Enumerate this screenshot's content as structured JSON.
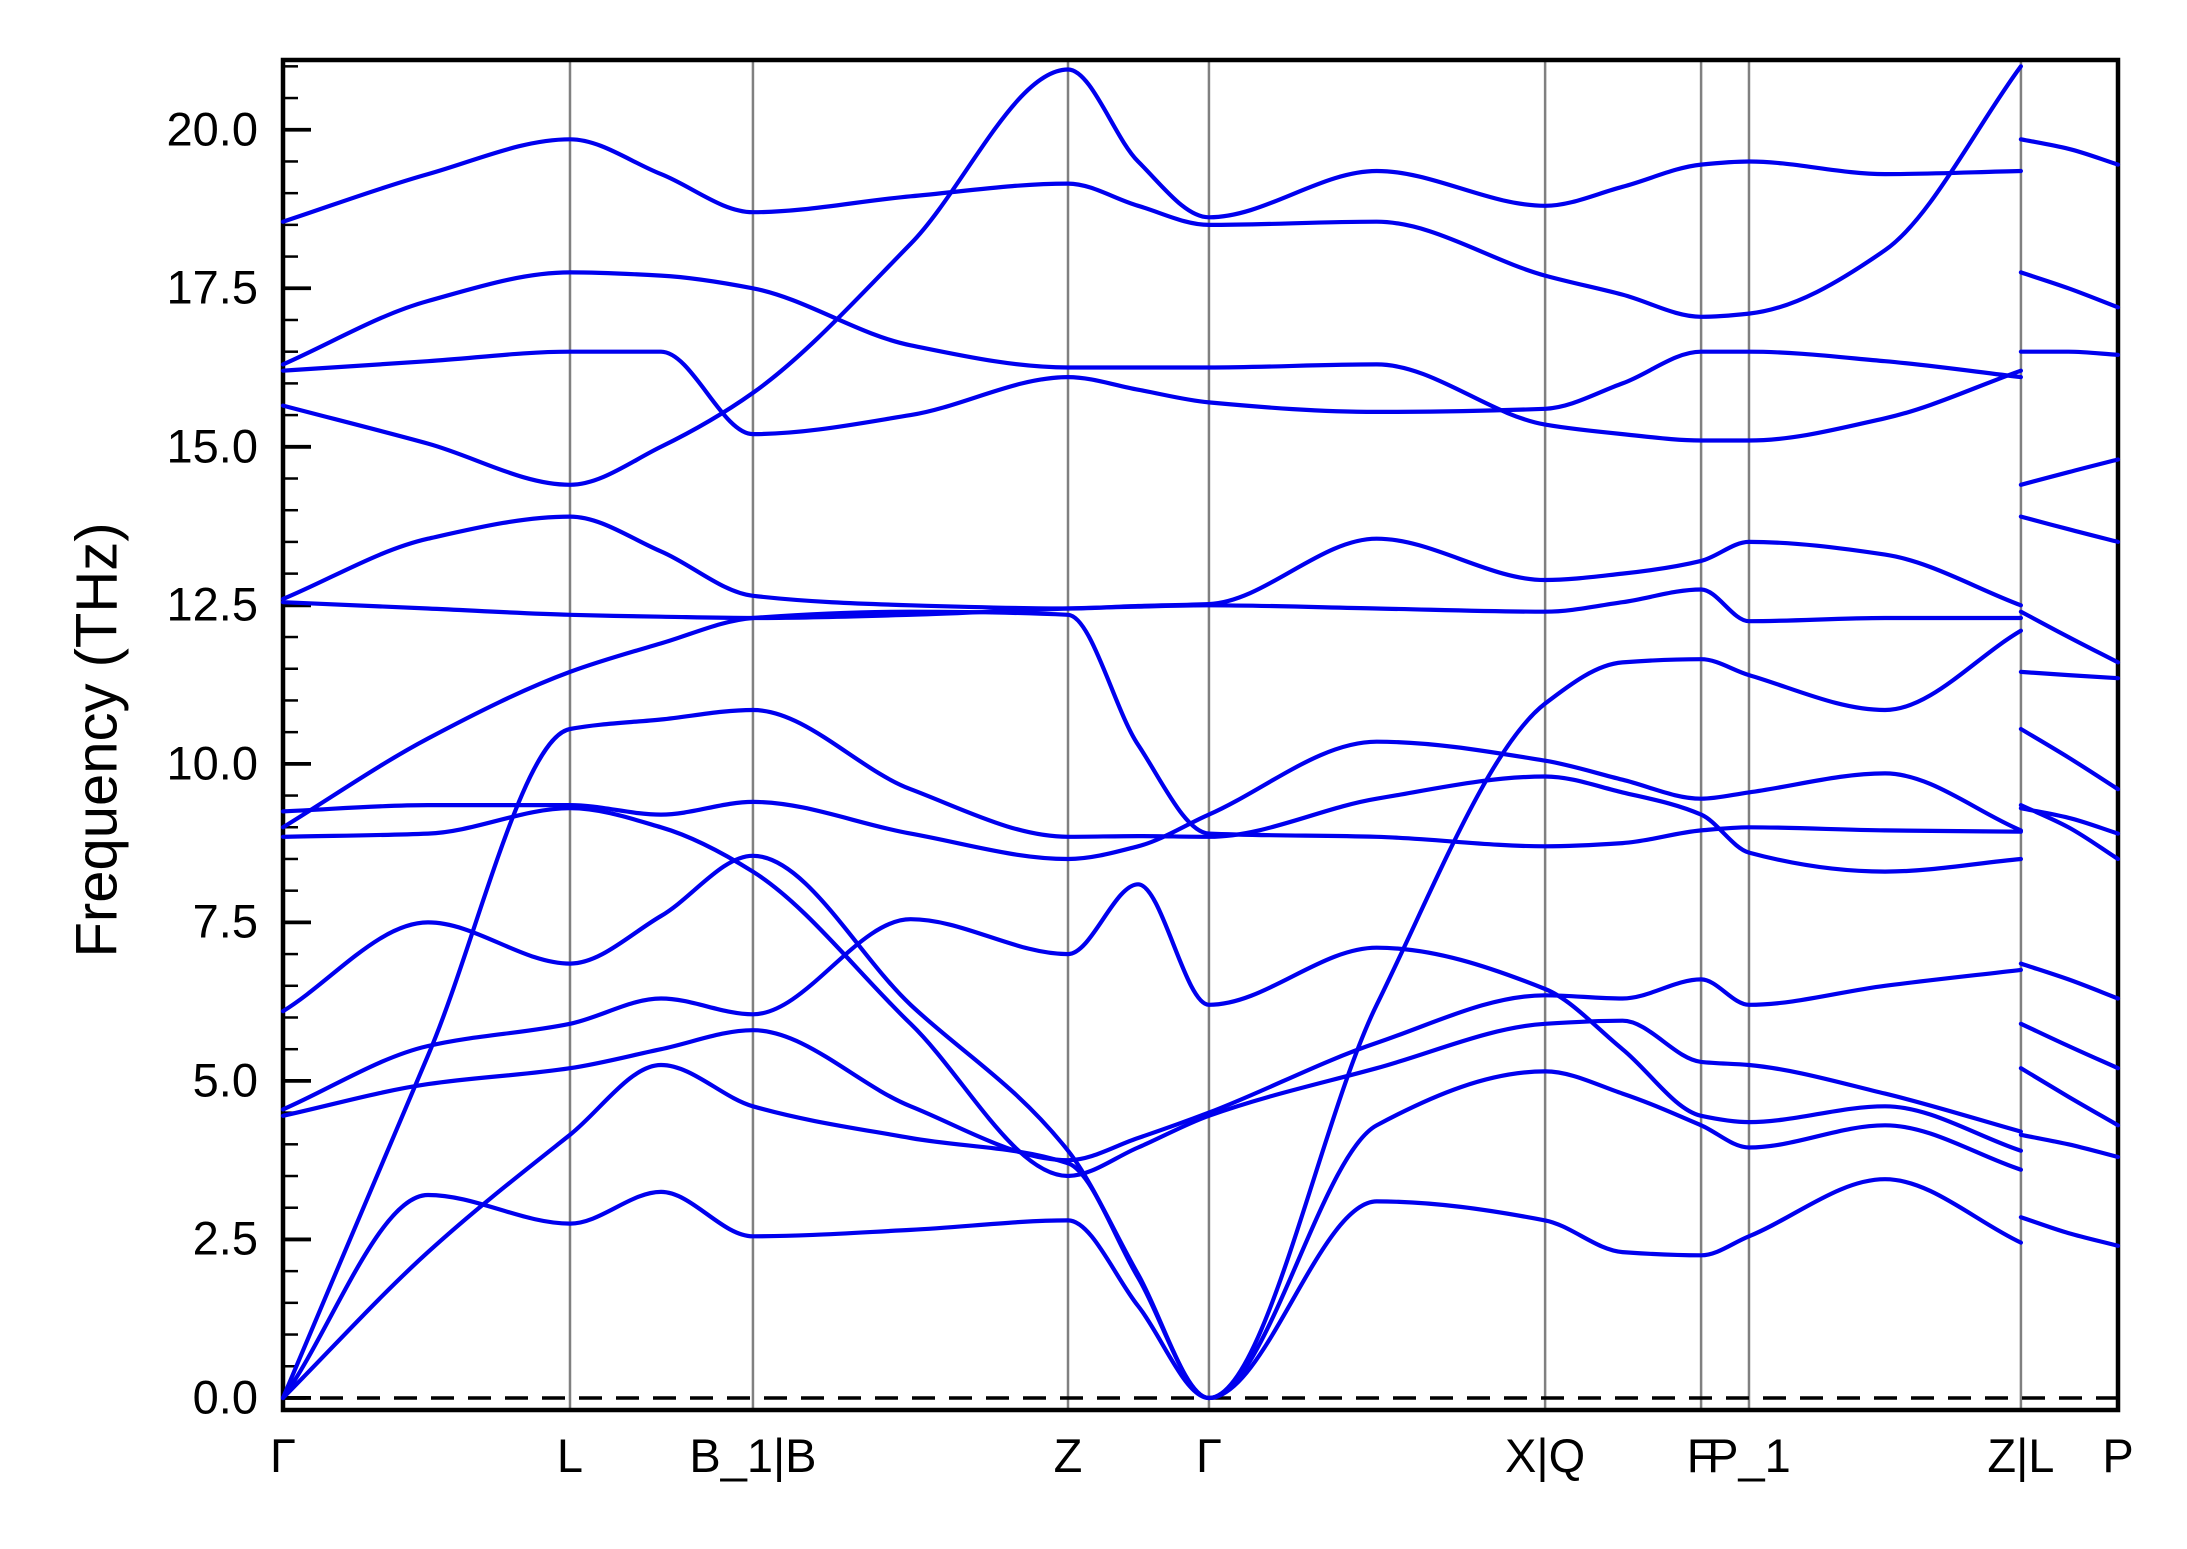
{
  "chart_data": {
    "type": "line",
    "title": "",
    "ylabel": "Frequency (THz)",
    "xlabel": "",
    "legend": "none",
    "grid": "vertical-only",
    "ylim": [
      -0.19,
      21.1
    ],
    "ytick_values": [
      0.0,
      2.5,
      5.0,
      7.5,
      10.0,
      12.5,
      15.0,
      17.5,
      20.0
    ],
    "ytick_labels": [
      "0.0",
      "2.5",
      "5.0",
      "7.5",
      "10.0",
      "12.5",
      "15.0",
      "17.5",
      "20.0"
    ],
    "y_minor_step": 0.5,
    "zero_reference_line": 0.0,
    "xticks": [
      {
        "label": "Γ",
        "pos": 0.0
      },
      {
        "label": "L",
        "pos": 0.1564
      },
      {
        "label": "B_1|B",
        "pos": 0.2561
      },
      {
        "label": "Z",
        "pos": 0.4278
      },
      {
        "label": "Γ",
        "pos": 0.5046
      },
      {
        "label": "X|Q",
        "pos": 0.6878
      },
      {
        "label": "F",
        "pos": 0.7728
      },
      {
        "label": "P_1",
        "pos": 0.7989
      },
      {
        "label": "Z|L",
        "pos": 0.9471
      },
      {
        "label": "P",
        "pos": 1.0
      }
    ],
    "path_discontinuity_pos": 0.9471,
    "stations": [
      0.0,
      0.079,
      0.1564,
      0.206,
      0.2561,
      0.342,
      0.4278,
      0.466,
      0.5046,
      0.596,
      0.6878,
      0.73,
      0.7728,
      0.7989,
      0.873,
      0.9471,
      0.9471,
      0.973,
      1.0
    ],
    "split_index": 16,
    "bands": [
      {
        "name": "band-01",
        "values": [
          0.0,
          3.2,
          2.75,
          3.25,
          2.55,
          2.65,
          2.8,
          1.45,
          0.0,
          3.1,
          2.8,
          2.3,
          2.25,
          2.55,
          3.45,
          2.45,
          2.85,
          2.6,
          2.4
        ]
      },
      {
        "name": "band-02",
        "values": [
          0.0,
          2.3,
          4.15,
          5.25,
          4.6,
          4.1,
          3.7,
          1.9,
          0.0,
          4.3,
          5.15,
          4.8,
          4.3,
          3.95,
          4.3,
          3.6,
          4.15,
          4.0,
          3.8
        ]
      },
      {
        "name": "band-03",
        "values": [
          0.0,
          5.4,
          10.55,
          10.7,
          10.85,
          9.6,
          8.85,
          8.86,
          8.85,
          9.45,
          9.8,
          9.55,
          9.2,
          8.6,
          8.3,
          8.5,
          9.3,
          9.15,
          8.9
        ]
      },
      {
        "name": "band-04",
        "values": [
          4.45,
          4.95,
          5.2,
          5.5,
          5.8,
          4.6,
          3.75,
          4.1,
          4.5,
          5.6,
          6.35,
          6.3,
          6.6,
          6.2,
          6.5,
          6.75,
          6.85,
          6.6,
          6.3
        ]
      },
      {
        "name": "band-05",
        "values": [
          4.55,
          5.55,
          5.9,
          6.3,
          6.05,
          7.55,
          7.0,
          8.1,
          6.2,
          7.1,
          6.45,
          5.5,
          4.45,
          4.35,
          4.6,
          3.9,
          5.2,
          4.75,
          4.3
        ]
      },
      {
        "name": "band-06",
        "values": [
          6.1,
          7.5,
          6.85,
          7.6,
          8.55,
          6.2,
          3.9,
          1.95,
          0.0,
          6.2,
          10.95,
          11.6,
          11.65,
          11.4,
          10.85,
          12.1,
          11.45,
          11.4,
          11.35
        ]
      },
      {
        "name": "band-07",
        "values": [
          8.85,
          8.9,
          9.3,
          9.0,
          8.3,
          5.9,
          3.5,
          3.95,
          4.45,
          5.2,
          5.9,
          5.95,
          5.3,
          5.25,
          4.8,
          4.2,
          5.9,
          5.55,
          5.2
        ]
      },
      {
        "name": "band-08",
        "values": [
          9.0,
          10.4,
          11.45,
          11.9,
          12.3,
          12.4,
          12.35,
          10.3,
          8.9,
          8.85,
          8.7,
          8.75,
          8.95,
          9.0,
          8.95,
          8.93,
          9.35,
          9.0,
          8.5
        ]
      },
      {
        "name": "band-09",
        "values": [
          9.25,
          9.35,
          9.35,
          9.2,
          9.4,
          8.9,
          8.5,
          8.7,
          9.2,
          10.35,
          10.05,
          9.75,
          9.45,
          9.55,
          9.85,
          8.95,
          10.55,
          10.1,
          9.6
        ]
      },
      {
        "name": "band-10",
        "values": [
          12.55,
          12.45,
          12.35,
          12.32,
          12.3,
          12.35,
          12.45,
          12.48,
          12.5,
          12.45,
          12.4,
          12.55,
          12.75,
          12.25,
          12.3,
          12.3,
          12.4,
          12.0,
          11.6
        ]
      },
      {
        "name": "band-11",
        "values": [
          12.6,
          13.55,
          13.9,
          13.35,
          12.65,
          12.5,
          12.45,
          12.49,
          12.52,
          13.55,
          12.9,
          13.0,
          13.2,
          13.5,
          13.3,
          12.5,
          13.9,
          13.7,
          13.5
        ]
      },
      {
        "name": "band-12",
        "values": [
          15.65,
          15.05,
          14.4,
          15.0,
          15.85,
          18.2,
          20.95,
          19.5,
          18.62,
          19.35,
          18.8,
          19.1,
          19.45,
          19.5,
          19.3,
          19.35,
          17.75,
          17.5,
          17.2
        ]
      },
      {
        "name": "band-13",
        "values": [
          16.2,
          16.35,
          16.5,
          16.5,
          15.2,
          15.5,
          16.1,
          15.9,
          15.7,
          15.55,
          15.6,
          16.0,
          16.5,
          16.5,
          16.35,
          16.1,
          14.4,
          14.6,
          14.8
        ]
      },
      {
        "name": "band-14",
        "values": [
          16.3,
          17.3,
          17.75,
          17.7,
          17.5,
          16.6,
          16.25,
          16.25,
          16.25,
          16.3,
          15.35,
          15.2,
          15.1,
          15.1,
          15.45,
          16.2,
          16.5,
          16.5,
          16.45
        ]
      },
      {
        "name": "band-15",
        "values": [
          18.55,
          19.3,
          19.85,
          19.3,
          18.7,
          18.95,
          19.15,
          18.8,
          18.5,
          18.55,
          17.7,
          17.4,
          17.05,
          17.1,
          18.1,
          21.0,
          19.85,
          19.7,
          19.45
        ]
      }
    ],
    "colors": {
      "band": "#0000EE",
      "grid": "#808080",
      "frame": "#000000",
      "zero_line": "#000000",
      "text": "#000000",
      "background": "#ffffff"
    }
  }
}
